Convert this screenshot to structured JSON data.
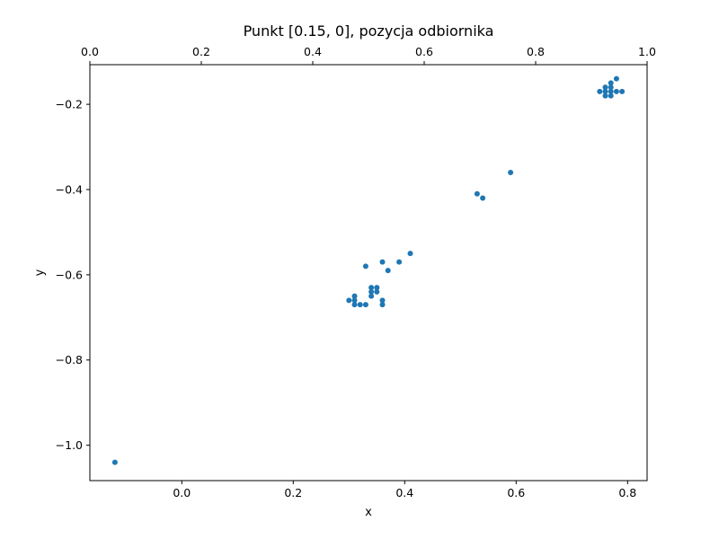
{
  "chart_data": {
    "type": "scatter",
    "title": "Punkt [0.15, 0], pozycja odbiornika",
    "xlabel": "x",
    "ylabel": "y",
    "xlim": [
      -0.165,
      0.835
    ],
    "ylim": [
      -1.083,
      -0.107
    ],
    "xticks": [
      0.0,
      0.2,
      0.4,
      0.6,
      0.8
    ],
    "xtick_labels": [
      "0.0",
      "0.2",
      "0.4",
      "0.6",
      "0.8"
    ],
    "yticks": [
      -1.0,
      -0.8,
      -0.6,
      -0.4,
      -0.2
    ],
    "ytick_labels": [
      "−1.0",
      "−0.8",
      "−0.6",
      "−0.4",
      "−0.2"
    ],
    "top_axis": {
      "xlim": [
        0.0,
        1.0
      ],
      "ticks": [
        0.0,
        0.2,
        0.4,
        0.6,
        0.8,
        1.0
      ],
      "tick_labels": [
        "0.0",
        "0.2",
        "0.4",
        "0.6",
        "0.8",
        "1.0"
      ]
    },
    "grid": false,
    "marker_color": "#1f77b4",
    "series": [
      {
        "points": [
          {
            "x": -0.12,
            "y": -1.04
          },
          {
            "x": 0.3,
            "y": -0.66
          },
          {
            "x": 0.31,
            "y": -0.65
          },
          {
            "x": 0.31,
            "y": -0.66
          },
          {
            "x": 0.31,
            "y": -0.67
          },
          {
            "x": 0.32,
            "y": -0.67
          },
          {
            "x": 0.33,
            "y": -0.67
          },
          {
            "x": 0.33,
            "y": -0.58
          },
          {
            "x": 0.34,
            "y": -0.63
          },
          {
            "x": 0.34,
            "y": -0.64
          },
          {
            "x": 0.34,
            "y": -0.65
          },
          {
            "x": 0.35,
            "y": -0.63
          },
          {
            "x": 0.35,
            "y": -0.64
          },
          {
            "x": 0.36,
            "y": -0.66
          },
          {
            "x": 0.36,
            "y": -0.67
          },
          {
            "x": 0.36,
            "y": -0.57
          },
          {
            "x": 0.37,
            "y": -0.59
          },
          {
            "x": 0.39,
            "y": -0.57
          },
          {
            "x": 0.41,
            "y": -0.55
          },
          {
            "x": 0.53,
            "y": -0.41
          },
          {
            "x": 0.54,
            "y": -0.42
          },
          {
            "x": 0.59,
            "y": -0.36
          },
          {
            "x": 0.75,
            "y": -0.17
          },
          {
            "x": 0.76,
            "y": -0.16
          },
          {
            "x": 0.76,
            "y": -0.17
          },
          {
            "x": 0.76,
            "y": -0.18
          },
          {
            "x": 0.77,
            "y": -0.15
          },
          {
            "x": 0.77,
            "y": -0.16
          },
          {
            "x": 0.77,
            "y": -0.17
          },
          {
            "x": 0.77,
            "y": -0.18
          },
          {
            "x": 0.78,
            "y": -0.14
          },
          {
            "x": 0.78,
            "y": -0.17
          },
          {
            "x": 0.79,
            "y": -0.17
          }
        ]
      }
    ]
  }
}
